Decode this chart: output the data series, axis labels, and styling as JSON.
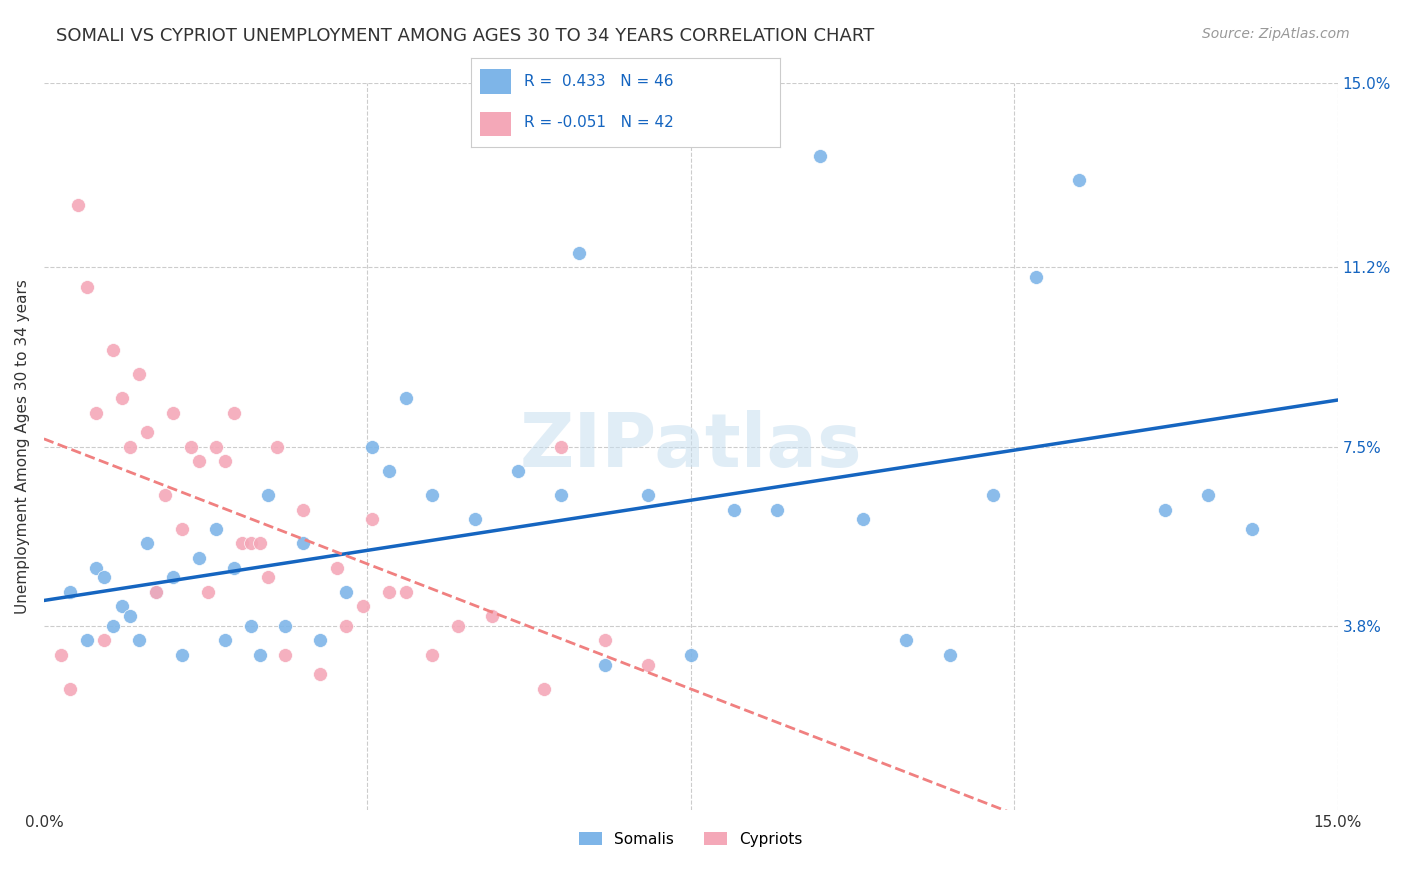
{
  "title": "SOMALI VS CYPRIOT UNEMPLOYMENT AMONG AGES 30 TO 34 YEARS CORRELATION CHART",
  "source": "Source: ZipAtlas.com",
  "ylabel": "Unemployment Among Ages 30 to 34 years",
  "xlim": [
    0,
    15
  ],
  "ylim": [
    0,
    15
  ],
  "yticks": [
    3.8,
    7.5,
    11.2,
    15.0
  ],
  "somali_R": 0.433,
  "somali_N": 46,
  "cypriot_R": -0.051,
  "cypriot_N": 42,
  "somali_color": "#7EB5E8",
  "cypriot_color": "#F4A8B8",
  "somali_line_color": "#1565C0",
  "cypriot_line_color": "#F08080",
  "background_color": "#FFFFFF",
  "grid_color": "#CCCCCC",
  "somali_x": [
    0.3,
    0.5,
    0.6,
    0.7,
    0.8,
    0.9,
    1.0,
    1.1,
    1.2,
    1.3,
    1.5,
    1.6,
    1.8,
    2.0,
    2.1,
    2.2,
    2.4,
    2.5,
    2.6,
    2.8,
    3.0,
    3.2,
    3.5,
    3.8,
    4.0,
    4.2,
    4.5,
    5.0,
    5.5,
    6.0,
    6.2,
    6.5,
    7.0,
    7.5,
    8.0,
    8.5,
    9.0,
    9.5,
    10.0,
    10.5,
    11.0,
    11.5,
    12.0,
    13.0,
    13.5,
    14.0
  ],
  "somali_y": [
    4.5,
    3.5,
    5.0,
    4.8,
    3.8,
    4.2,
    4.0,
    3.5,
    5.5,
    4.5,
    4.8,
    3.2,
    5.2,
    5.8,
    3.5,
    5.0,
    3.8,
    3.2,
    6.5,
    3.8,
    5.5,
    3.5,
    4.5,
    7.5,
    7.0,
    8.5,
    6.5,
    6.0,
    7.0,
    6.5,
    11.5,
    3.0,
    6.5,
    3.2,
    6.2,
    6.2,
    13.5,
    6.0,
    3.5,
    3.2,
    6.5,
    11.0,
    13.0,
    6.2,
    6.5,
    5.8
  ],
  "cypriot_x": [
    0.2,
    0.3,
    0.4,
    0.5,
    0.6,
    0.7,
    0.8,
    0.9,
    1.0,
    1.1,
    1.2,
    1.3,
    1.4,
    1.5,
    1.6,
    1.7,
    1.8,
    1.9,
    2.0,
    2.1,
    2.2,
    2.3,
    2.4,
    2.5,
    2.6,
    2.7,
    2.8,
    3.0,
    3.2,
    3.4,
    3.5,
    3.7,
    3.8,
    4.0,
    4.2,
    4.5,
    4.8,
    5.2,
    5.8,
    6.0,
    6.5,
    7.0
  ],
  "cypriot_y": [
    3.2,
    2.5,
    12.5,
    10.8,
    8.2,
    3.5,
    9.5,
    8.5,
    7.5,
    9.0,
    7.8,
    4.5,
    6.5,
    8.2,
    5.8,
    7.5,
    7.2,
    4.5,
    7.5,
    7.2,
    8.2,
    5.5,
    5.5,
    5.5,
    4.8,
    7.5,
    3.2,
    6.2,
    2.8,
    5.0,
    3.8,
    4.2,
    6.0,
    4.5,
    4.5,
    3.2,
    3.8,
    4.0,
    2.5,
    7.5,
    3.5,
    3.0
  ]
}
